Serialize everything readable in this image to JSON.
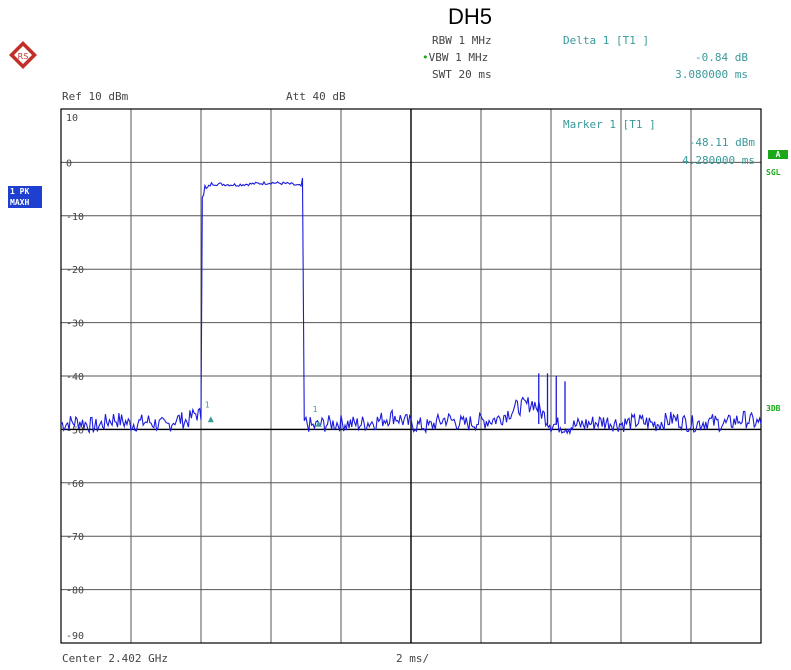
{
  "title": "DH5",
  "header": {
    "rbw": "RBW 1 MHz",
    "vbw": "VBW 1 MHz",
    "swt": "SWT 20 ms",
    "ref": "Ref  10 dBm",
    "att": "Att  40 dB"
  },
  "delta_marker": {
    "label": "Delta 1 [T1 ]",
    "level": "-0.84 dB",
    "time": "3.080000 ms"
  },
  "marker": {
    "label": "Marker 1 [T1 ]",
    "level": "-48.11 dBm",
    "time": "4.280000 ms"
  },
  "left_badge": {
    "line1": "1 PK",
    "line2": "MAXH"
  },
  "right_badge": {
    "a": "A",
    "sgl": "SGL",
    "threedb": "3DB"
  },
  "footer": {
    "center": "Center 2.402 GHz",
    "span": "2 ms/"
  },
  "colors": {
    "trace": "#1a1adc",
    "grid": "#555555",
    "frame": "#000000",
    "marker_teal": "#3a9a9a",
    "badge_blue": "#1f3fd0",
    "badge_green": "#1aa81a"
  },
  "chart_data": {
    "type": "line",
    "title": "DH5",
    "xlabel": "",
    "ylabel": "",
    "xlim": [
      0,
      20
    ],
    "ylim": [
      -90,
      10
    ],
    "y_ticks": [
      10,
      0,
      -10,
      -20,
      -30,
      -40,
      -50,
      -60,
      -70,
      -80,
      -90
    ],
    "y_tick_labels": [
      "10",
      "0",
      "-10",
      "-20",
      "-30",
      "-40",
      "-50",
      "-60",
      "-70",
      "-80",
      "-90"
    ],
    "grid": true,
    "reference_line_dbm": -50,
    "series": [
      {
        "x": [
          0,
          0.5,
          1,
          1.5,
          2,
          2.5,
          3,
          3.3,
          3.6,
          3.85,
          4.0,
          4.15,
          4.3,
          5.0,
          6.0,
          6.5,
          6.9,
          7.0,
          7.2,
          7.5,
          8,
          8.5,
          9,
          9.5,
          10,
          10.5,
          11,
          11.5,
          12,
          12.5,
          13,
          13.5,
          14,
          14.5,
          15,
          15.5,
          16,
          16.5,
          17,
          17.5,
          18,
          18.5,
          19,
          19.5,
          20
        ],
        "y": [
          -49,
          -48.5,
          -49.5,
          -48,
          -49,
          -48.5,
          -49.5,
          -48,
          -48.5,
          -47,
          -47.5,
          -5,
          -4,
          -4.2,
          -3.8,
          -4,
          -4.5,
          -48.8,
          -49.5,
          -49,
          -48.8,
          -49,
          -48.5,
          -47.5,
          -49,
          -49.5,
          -48,
          -49,
          -48.5,
          -48,
          -46,
          -45,
          -49,
          -49.5,
          -49,
          -48.5,
          -49,
          -48.5,
          -49,
          -48,
          -49,
          -48.5,
          -49,
          -48,
          -49
        ]
      }
    ],
    "spikes": [
      {
        "x": 13.65,
        "y": -39.5
      },
      {
        "x": 13.9,
        "y": -39.5
      },
      {
        "x": 14.15,
        "y": -40
      },
      {
        "x": 14.4,
        "y": -41
      }
    ],
    "markers": [
      {
        "name": "D1",
        "x": 4.28,
        "y": -48.11
      },
      {
        "name": "M1",
        "x": 7.36,
        "y": -48.95
      }
    ]
  }
}
